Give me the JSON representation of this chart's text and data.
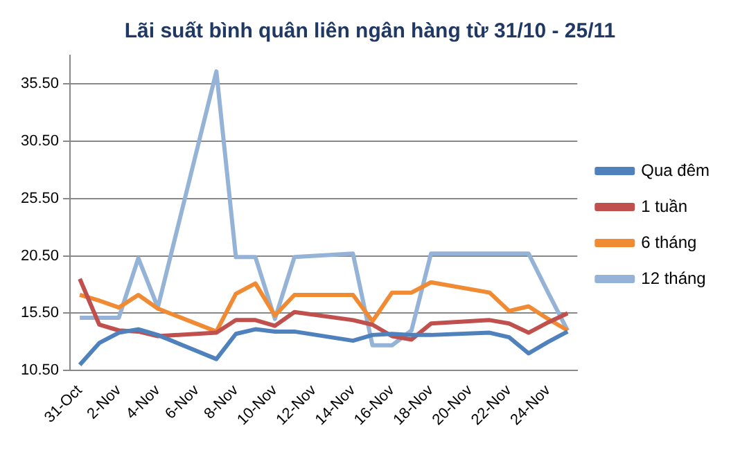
{
  "chart_data": {
    "type": "line",
    "title": "Lãi suất bình quân liên ngân hàng từ 31/10 - 25/11",
    "categories": [
      "31-Oct",
      null,
      "2-Nov",
      null,
      "4-Nov",
      null,
      "6-Nov",
      null,
      "8-Nov",
      null,
      "10-Nov",
      null,
      "12-Nov",
      null,
      "14-Nov",
      null,
      "16-Nov",
      null,
      "18-Nov",
      null,
      "20-Nov",
      null,
      "22-Nov",
      null,
      "24-Nov",
      null
    ],
    "series": [
      {
        "name": "Qua đêm",
        "color": "#4f81bd",
        "values": [
          11.0,
          12.9,
          13.8,
          14.1,
          13.6,
          null,
          null,
          11.5,
          13.7,
          14.1,
          13.9,
          13.9,
          null,
          null,
          13.1,
          13.6,
          13.7,
          13.6,
          13.6,
          null,
          null,
          13.8,
          13.4,
          12.0,
          13.0,
          13.9
        ]
      },
      {
        "name": "1 tuần",
        "color": "#c0504d",
        "values": [
          18.5,
          14.5,
          14.0,
          13.9,
          13.5,
          null,
          null,
          13.8,
          14.9,
          14.9,
          14.4,
          15.6,
          null,
          null,
          14.9,
          14.5,
          13.5,
          13.2,
          14.6,
          null,
          null,
          14.9,
          14.6,
          13.8,
          14.7,
          15.5
        ]
      },
      {
        "name": "6 tháng",
        "color": "#f08a33",
        "values": [
          17.1,
          16.6,
          16.0,
          17.1,
          15.9,
          null,
          null,
          13.9,
          17.2,
          18.1,
          15.3,
          17.1,
          null,
          null,
          17.1,
          14.8,
          17.3,
          17.3,
          18.2,
          null,
          null,
          17.3,
          15.7,
          16.1,
          15.0,
          14.0
        ]
      },
      {
        "name": "12 tháng",
        "color": "#95b3d7",
        "values": [
          15.1,
          15.1,
          15.1,
          20.3,
          16.0,
          null,
          null,
          36.6,
          20.4,
          20.4,
          15.0,
          20.4,
          null,
          null,
          20.7,
          12.7,
          12.7,
          14.0,
          20.7,
          null,
          null,
          20.7,
          20.7,
          20.7,
          17.3,
          14.0
        ]
      }
    ],
    "ylim": [
      10.5,
      38
    ],
    "yticks": [
      {
        "value": 10.5,
        "label": "10.50"
      },
      {
        "value": 15.5,
        "label": "15.50"
      },
      {
        "value": 20.5,
        "label": "20.50"
      },
      {
        "value": 25.5,
        "label": "25.50"
      },
      {
        "value": 30.5,
        "label": "30.50"
      },
      {
        "value": 35.5,
        "label": "35.50"
      }
    ],
    "grid": "y",
    "legend": "right"
  }
}
